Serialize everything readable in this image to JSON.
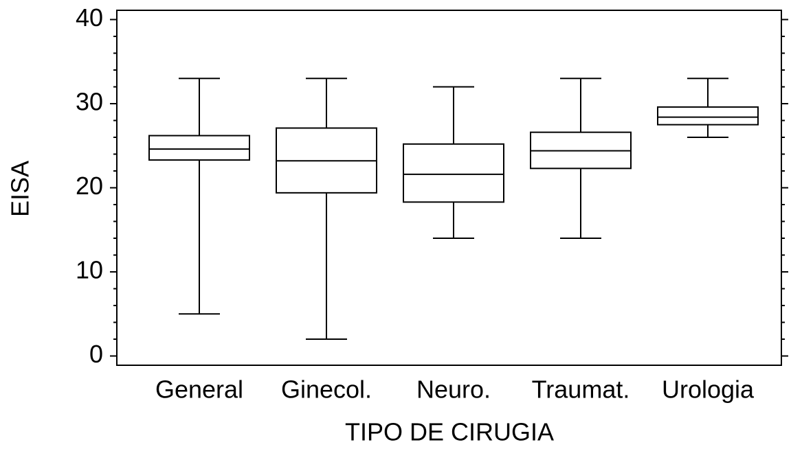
{
  "chart_data": {
    "type": "box",
    "x_label": "TIPO DE CIRUGIA",
    "y_label": "EISA",
    "categories": [
      "General",
      "Ginecol.",
      "Neuro.",
      "Traumat.",
      "Urologia"
    ],
    "min": [
      5,
      2,
      14,
      14,
      26
    ],
    "q1": [
      23.3,
      19.4,
      18.3,
      22.3,
      27.5
    ],
    "median": [
      24.6,
      23.2,
      21.6,
      24.4,
      28.4
    ],
    "q3": [
      26.2,
      27.1,
      25.2,
      26.6,
      29.6
    ],
    "max": [
      33,
      33,
      32,
      33,
      33
    ],
    "color": "#000000",
    "ylim": [
      -1.1,
      41.1
    ],
    "yticks": [
      0,
      10,
      20,
      30,
      40
    ],
    "yminorticks": [
      2,
      4,
      6,
      8,
      12,
      14,
      16,
      18,
      22,
      24,
      26,
      28,
      32,
      34,
      36,
      38
    ],
    "grid": false
  }
}
